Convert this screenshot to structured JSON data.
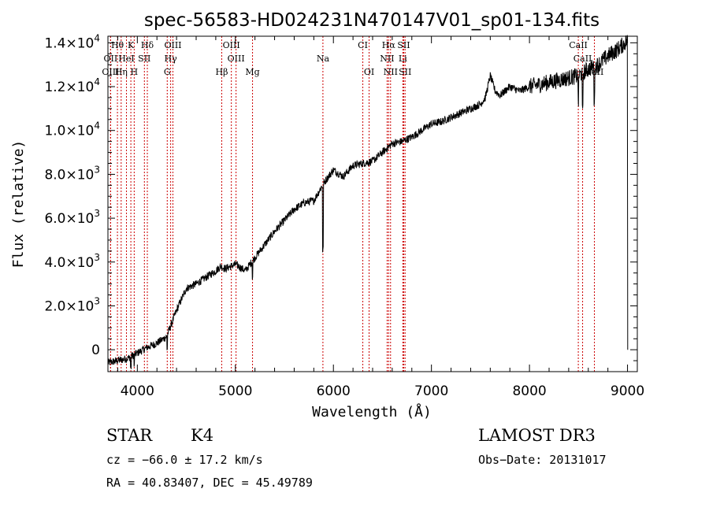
{
  "chart_data": {
    "type": "line",
    "title": "spec-56583-HD024231N470147V01_sp01-134.fits",
    "xlabel": "Wavelength (Å)",
    "ylabel": "Flux (relative)",
    "xlim": [
      3700,
      9100
    ],
    "ylim": [
      -1000,
      14300
    ],
    "x_ticks": [
      4000,
      5000,
      6000,
      7000,
      8000,
      9000
    ],
    "x_tick_labels": [
      "4000",
      "5000",
      "6000",
      "7000",
      "8000",
      "9000"
    ],
    "y_ticks": [
      0,
      2000,
      4000,
      6000,
      8000,
      10000,
      12000,
      14000
    ],
    "y_tick_labels": [
      {
        "mantissa": "0",
        "exponent": ""
      },
      {
        "mantissa": "2.0×10",
        "exponent": "3"
      },
      {
        "mantissa": "4.0×10",
        "exponent": "3"
      },
      {
        "mantissa": "6.0×10",
        "exponent": "3"
      },
      {
        "mantissa": "8.0×10",
        "exponent": "3"
      },
      {
        "mantissa": "1.0×10",
        "exponent": "4"
      },
      {
        "mantissa": "1.2×10",
        "exponent": "4"
      },
      {
        "mantissa": "1.4×10",
        "exponent": "4"
      }
    ],
    "spectrum_anchor_points": {
      "wavelength": [
        3700,
        3800,
        3900,
        4000,
        4100,
        4200,
        4300,
        4350,
        4400,
        4500,
        4600,
        4700,
        4800,
        4850,
        4900,
        5000,
        5100,
        5200,
        5300,
        5400,
        5500,
        5600,
        5700,
        5800,
        5850,
        5900,
        6000,
        6100,
        6200,
        6300,
        6400,
        6500,
        6550,
        6600,
        6700,
        6800,
        6900,
        7000,
        7100,
        7200,
        7300,
        7400,
        7500,
        7550,
        7600,
        7650,
        7700,
        7800,
        7900,
        8000,
        8100,
        8200,
        8300,
        8400,
        8500,
        8600,
        8700,
        8800,
        8900,
        8950,
        9000
      ],
      "flux": [
        -600,
        -500,
        -400,
        -150,
        100,
        300,
        600,
        1200,
        1800,
        2800,
        3000,
        3300,
        3600,
        3800,
        3700,
        3900,
        3600,
        4200,
        4800,
        5400,
        5900,
        6400,
        6700,
        6800,
        7200,
        7600,
        8200,
        7900,
        8400,
        8500,
        8600,
        9000,
        9200,
        9400,
        9500,
        9700,
        10000,
        10300,
        10400,
        10600,
        10800,
        11000,
        11200,
        11500,
        12500,
        11800,
        11600,
        12000,
        11800,
        12000,
        12100,
        12200,
        12300,
        12400,
        12500,
        12800,
        13000,
        13400,
        13700,
        13900,
        14100
      ]
    },
    "spectral_lines": [
      {
        "name": "Hθ",
        "wavelength": 3797,
        "row": 0
      },
      {
        "name": "K",
        "wavelength": 3934,
        "row": 0
      },
      {
        "name": "Hδ",
        "wavelength": 4102,
        "row": 0
      },
      {
        "name": "OIII",
        "wavelength": 4363,
        "row": 0
      },
      {
        "name": "OIII",
        "wavelength": 4959,
        "row": 0
      },
      {
        "name": "CI",
        "wavelength": 6300,
        "row": 0
      },
      {
        "name": "Hα",
        "wavelength": 6563,
        "row": 0
      },
      {
        "name": "SII",
        "wavelength": 6717,
        "row": 0
      },
      {
        "name": "CaII",
        "wavelength": 8498,
        "row": 0
      },
      {
        "name": "OII",
        "wavelength": 3727,
        "row": 1
      },
      {
        "name": "HeI",
        "wavelength": 3889,
        "row": 1
      },
      {
        "name": "SII",
        "wavelength": 4072,
        "row": 1
      },
      {
        "name": "Hγ",
        "wavelength": 4340,
        "row": 1
      },
      {
        "name": "OIII",
        "wavelength": 5007,
        "row": 1
      },
      {
        "name": "Na",
        "wavelength": 5893,
        "row": 1
      },
      {
        "name": "NII",
        "wavelength": 6548,
        "row": 1
      },
      {
        "name": "Li",
        "wavelength": 6708,
        "row": 1
      },
      {
        "name": "CaII",
        "wavelength": 8542,
        "row": 1
      },
      {
        "name": "OIII",
        "wavelength": 3727,
        "row": 2
      },
      {
        "name": "Hη",
        "wavelength": 3835,
        "row": 2
      },
      {
        "name": "H",
        "wavelength": 3968,
        "row": 2
      },
      {
        "name": "G",
        "wavelength": 4305,
        "row": 2
      },
      {
        "name": "Hβ",
        "wavelength": 4861,
        "row": 2
      },
      {
        "name": "Mg",
        "wavelength": 5175,
        "row": 2
      },
      {
        "name": "OI",
        "wavelength": 6364,
        "row": 2
      },
      {
        "name": "NII",
        "wavelength": 6583,
        "row": 2
      },
      {
        "name": "SII",
        "wavelength": 6731,
        "row": 2
      },
      {
        "name": "CaII",
        "wavelength": 8662,
        "row": 2
      }
    ],
    "line_marker_color": "#cc0000",
    "spectrum_color": "#000000"
  },
  "info": {
    "object_class": "STAR",
    "subclass": "K4",
    "survey": "LAMOST DR3",
    "cz": "cz = −66.0 ± 17.2 km/s",
    "obs_date": "Obs−Date: 20131017",
    "coords": "RA =  40.83407, DEC =  45.49789"
  }
}
